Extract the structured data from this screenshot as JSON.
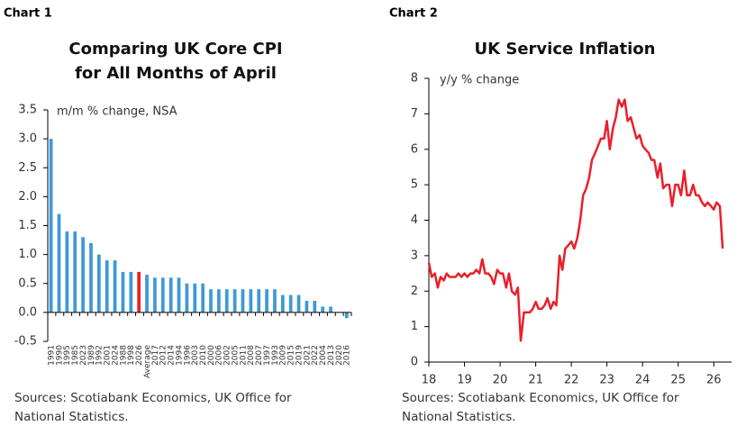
{
  "chart_data": [
    {
      "type": "bar",
      "label": "Chart 1",
      "title": [
        "Comparing UK Core CPI",
        "for All Months of April"
      ],
      "axis_note": "m/m % change, NSA",
      "categories": [
        "1991",
        "1990",
        "1995",
        "1985",
        "2023",
        "1989",
        "1992",
        "2001",
        "2024",
        "1988",
        "1998",
        "2026",
        "Average",
        "2017",
        "2012",
        "2014",
        "1994",
        "1996",
        "2003",
        "2010",
        "2000",
        "2006",
        "2002",
        "2005",
        "2011",
        "2008",
        "2007",
        "1997",
        "1993",
        "2009",
        "2015",
        "2019",
        "2021",
        "2022",
        "2004",
        "2013",
        "2020",
        "2016"
      ],
      "values": [
        3.0,
        1.7,
        1.4,
        1.4,
        1.3,
        1.2,
        1.0,
        0.9,
        0.9,
        0.7,
        0.7,
        0.7,
        0.65,
        0.6,
        0.6,
        0.6,
        0.6,
        0.5,
        0.5,
        0.5,
        0.4,
        0.4,
        0.4,
        0.4,
        0.4,
        0.4,
        0.4,
        0.4,
        0.4,
        0.3,
        0.3,
        0.3,
        0.2,
        0.2,
        0.1,
        0.1,
        0.0,
        -0.1
      ],
      "colors": [
        "#3d9ad6",
        "#3d9ad6",
        "#3d9ad6",
        "#3d9ad6",
        "#3d9ad6",
        "#3d9ad6",
        "#3d9ad6",
        "#3d9ad6",
        "#3d9ad6",
        "#3d9ad6",
        "#3d9ad6",
        "#e8202a",
        "#3d9ad6",
        "#3d9ad6",
        "#3d9ad6",
        "#3d9ad6",
        "#3d9ad6",
        "#3d9ad6",
        "#3d9ad6",
        "#3d9ad6",
        "#3d9ad6",
        "#3d9ad6",
        "#3d9ad6",
        "#3d9ad6",
        "#3d9ad6",
        "#3d9ad6",
        "#3d9ad6",
        "#3d9ad6",
        "#3d9ad6",
        "#3d9ad6",
        "#3d9ad6",
        "#3d9ad6",
        "#3d9ad6",
        "#3d9ad6",
        "#3d9ad6",
        "#3d9ad6",
        "#3d9ad6",
        "#3d9ad6"
      ],
      "ylim": [
        -0.5,
        3.5
      ],
      "yticks": [
        {
          "value": 3.5,
          "label": "3.5"
        },
        {
          "value": 3,
          "label": "3.0"
        },
        2.5,
        {
          "value": 2,
          "label": "2.0"
        },
        1.5,
        {
          "value": 1,
          "label": "1.0"
        },
        0.5,
        {
          "value": 0,
          "label": "0.0"
        },
        -0.5
      ],
      "source": [
        "Sources: Scotiabank Economics, UK Office for",
        "National Statistics."
      ]
    },
    {
      "type": "line",
      "label": "Chart 2",
      "title": [
        "UK Service Inflation"
      ],
      "axis_note": "y/y % change",
      "color": "#e8202a",
      "x": [
        18,
        18.08,
        18.17,
        18.25,
        18.33,
        18.42,
        18.5,
        18.58,
        18.67,
        18.75,
        18.83,
        18.92,
        19,
        19.08,
        19.17,
        19.25,
        19.33,
        19.42,
        19.5,
        19.58,
        19.67,
        19.75,
        19.83,
        19.92,
        20,
        20.08,
        20.17,
        20.25,
        20.33,
        20.42,
        20.5,
        20.58,
        20.67,
        20.75,
        20.83,
        20.92,
        21,
        21.08,
        21.17,
        21.25,
        21.33,
        21.42,
        21.5,
        21.58,
        21.67,
        21.75,
        21.83,
        21.92,
        22,
        22.08,
        22.17,
        22.25,
        22.33,
        22.42,
        22.5,
        22.58,
        22.67,
        22.75,
        22.83,
        22.92,
        23,
        23.08,
        23.17,
        23.25,
        23.33,
        23.42,
        23.5,
        23.58,
        23.67,
        23.75,
        23.83,
        23.92,
        24,
        24.08,
        24.17,
        24.25,
        24.33,
        24.42,
        24.5,
        24.58,
        24.67,
        24.75,
        24.83,
        24.92,
        25,
        25.08,
        25.17,
        25.25,
        25.33,
        25.42,
        25.5,
        25.58,
        25.67,
        25.75,
        25.83,
        25.92,
        26,
        26.08,
        26.17,
        26.25
      ],
      "values": [
        2.8,
        2.4,
        2.5,
        2.1,
        2.4,
        2.3,
        2.5,
        2.4,
        2.4,
        2.4,
        2.5,
        2.4,
        2.5,
        2.4,
        2.5,
        2.5,
        2.6,
        2.5,
        2.9,
        2.5,
        2.5,
        2.4,
        2.2,
        2.6,
        2.5,
        2.5,
        2.1,
        2.5,
        2.0,
        1.9,
        2.1,
        0.6,
        1.4,
        1.4,
        1.4,
        1.5,
        1.7,
        1.5,
        1.5,
        1.6,
        1.8,
        1.5,
        1.7,
        1.6,
        3.0,
        2.6,
        3.2,
        3.3,
        3.4,
        3.2,
        3.5,
        4.0,
        4.7,
        4.9,
        5.2,
        5.7,
        5.9,
        6.1,
        6.3,
        6.3,
        6.8,
        6.0,
        6.6,
        6.9,
        7.4,
        7.2,
        7.4,
        6.8,
        6.9,
        6.6,
        6.3,
        6.4,
        6.1,
        6.0,
        5.9,
        5.7,
        5.7,
        5.2,
        5.6,
        4.9,
        5.0,
        5.0,
        4.4,
        5.0,
        5.0,
        4.7,
        5.4,
        4.7,
        4.7,
        5.0,
        4.7,
        4.7,
        4.5,
        4.4,
        4.5,
        4.4,
        4.3,
        4.5,
        4.4,
        3.2
      ],
      "xlim": [
        18,
        26.5
      ],
      "xticks": [
        18,
        19,
        20,
        21,
        22,
        23,
        24,
        25,
        26
      ],
      "ylim": [
        0,
        8
      ],
      "yticks": [
        0,
        1,
        2,
        3,
        4,
        5,
        6,
        7,
        8
      ],
      "source": [
        "Sources: Scotiabank Economics, UK Office for",
        "National Statistics."
      ]
    }
  ]
}
